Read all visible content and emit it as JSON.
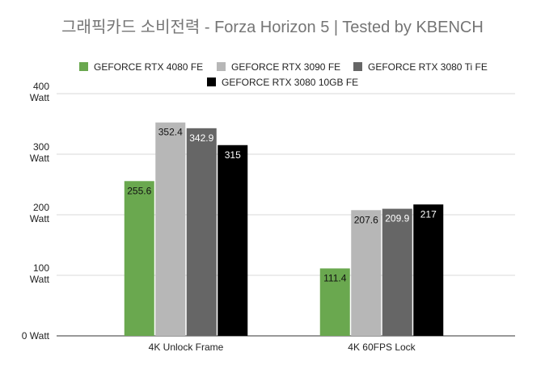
{
  "chart_data": {
    "type": "bar",
    "title": "그래픽카드 소비전력 - Forza Horizon 5 | Tested by KBENCH",
    "categories": [
      "4K Unlock Frame",
      "4K 60FPS Lock"
    ],
    "series": [
      {
        "name": "GEFORCE RTX 4080 FE",
        "values": [
          255.6,
          111.4
        ],
        "color": "#6aa84f",
        "label_color": "#111111"
      },
      {
        "name": "GEFORCE RTX 3090 FE",
        "values": [
          352.4,
          207.6
        ],
        "color": "#b7b7b7",
        "label_color": "#111111"
      },
      {
        "name": "GEFORCE RTX 3080 Ti FE",
        "values": [
          342.9,
          209.9
        ],
        "color": "#666666",
        "label_color": "#ffffff"
      },
      {
        "name": "GEFORCE RTX 3080 10GB FE",
        "values": [
          315,
          217
        ],
        "color": "#000000",
        "label_color": "#ffffff"
      }
    ],
    "data_labels": [
      [
        "255.6",
        "111.4"
      ],
      [
        "352.4",
        "207.6"
      ],
      [
        "342.9",
        "209.9"
      ],
      [
        "315",
        "217"
      ]
    ],
    "y_ticks": [
      {
        "value": 0,
        "lines": [
          "0 Watt"
        ]
      },
      {
        "value": 100,
        "lines": [
          "100",
          "Watt"
        ]
      },
      {
        "value": 200,
        "lines": [
          "200",
          "Watt"
        ]
      },
      {
        "value": 300,
        "lines": [
          "300",
          "Watt"
        ]
      },
      {
        "value": 400,
        "lines": [
          "400",
          "Watt"
        ]
      }
    ],
    "ylim": [
      0,
      400
    ],
    "grid": true,
    "legend_position": "top"
  }
}
